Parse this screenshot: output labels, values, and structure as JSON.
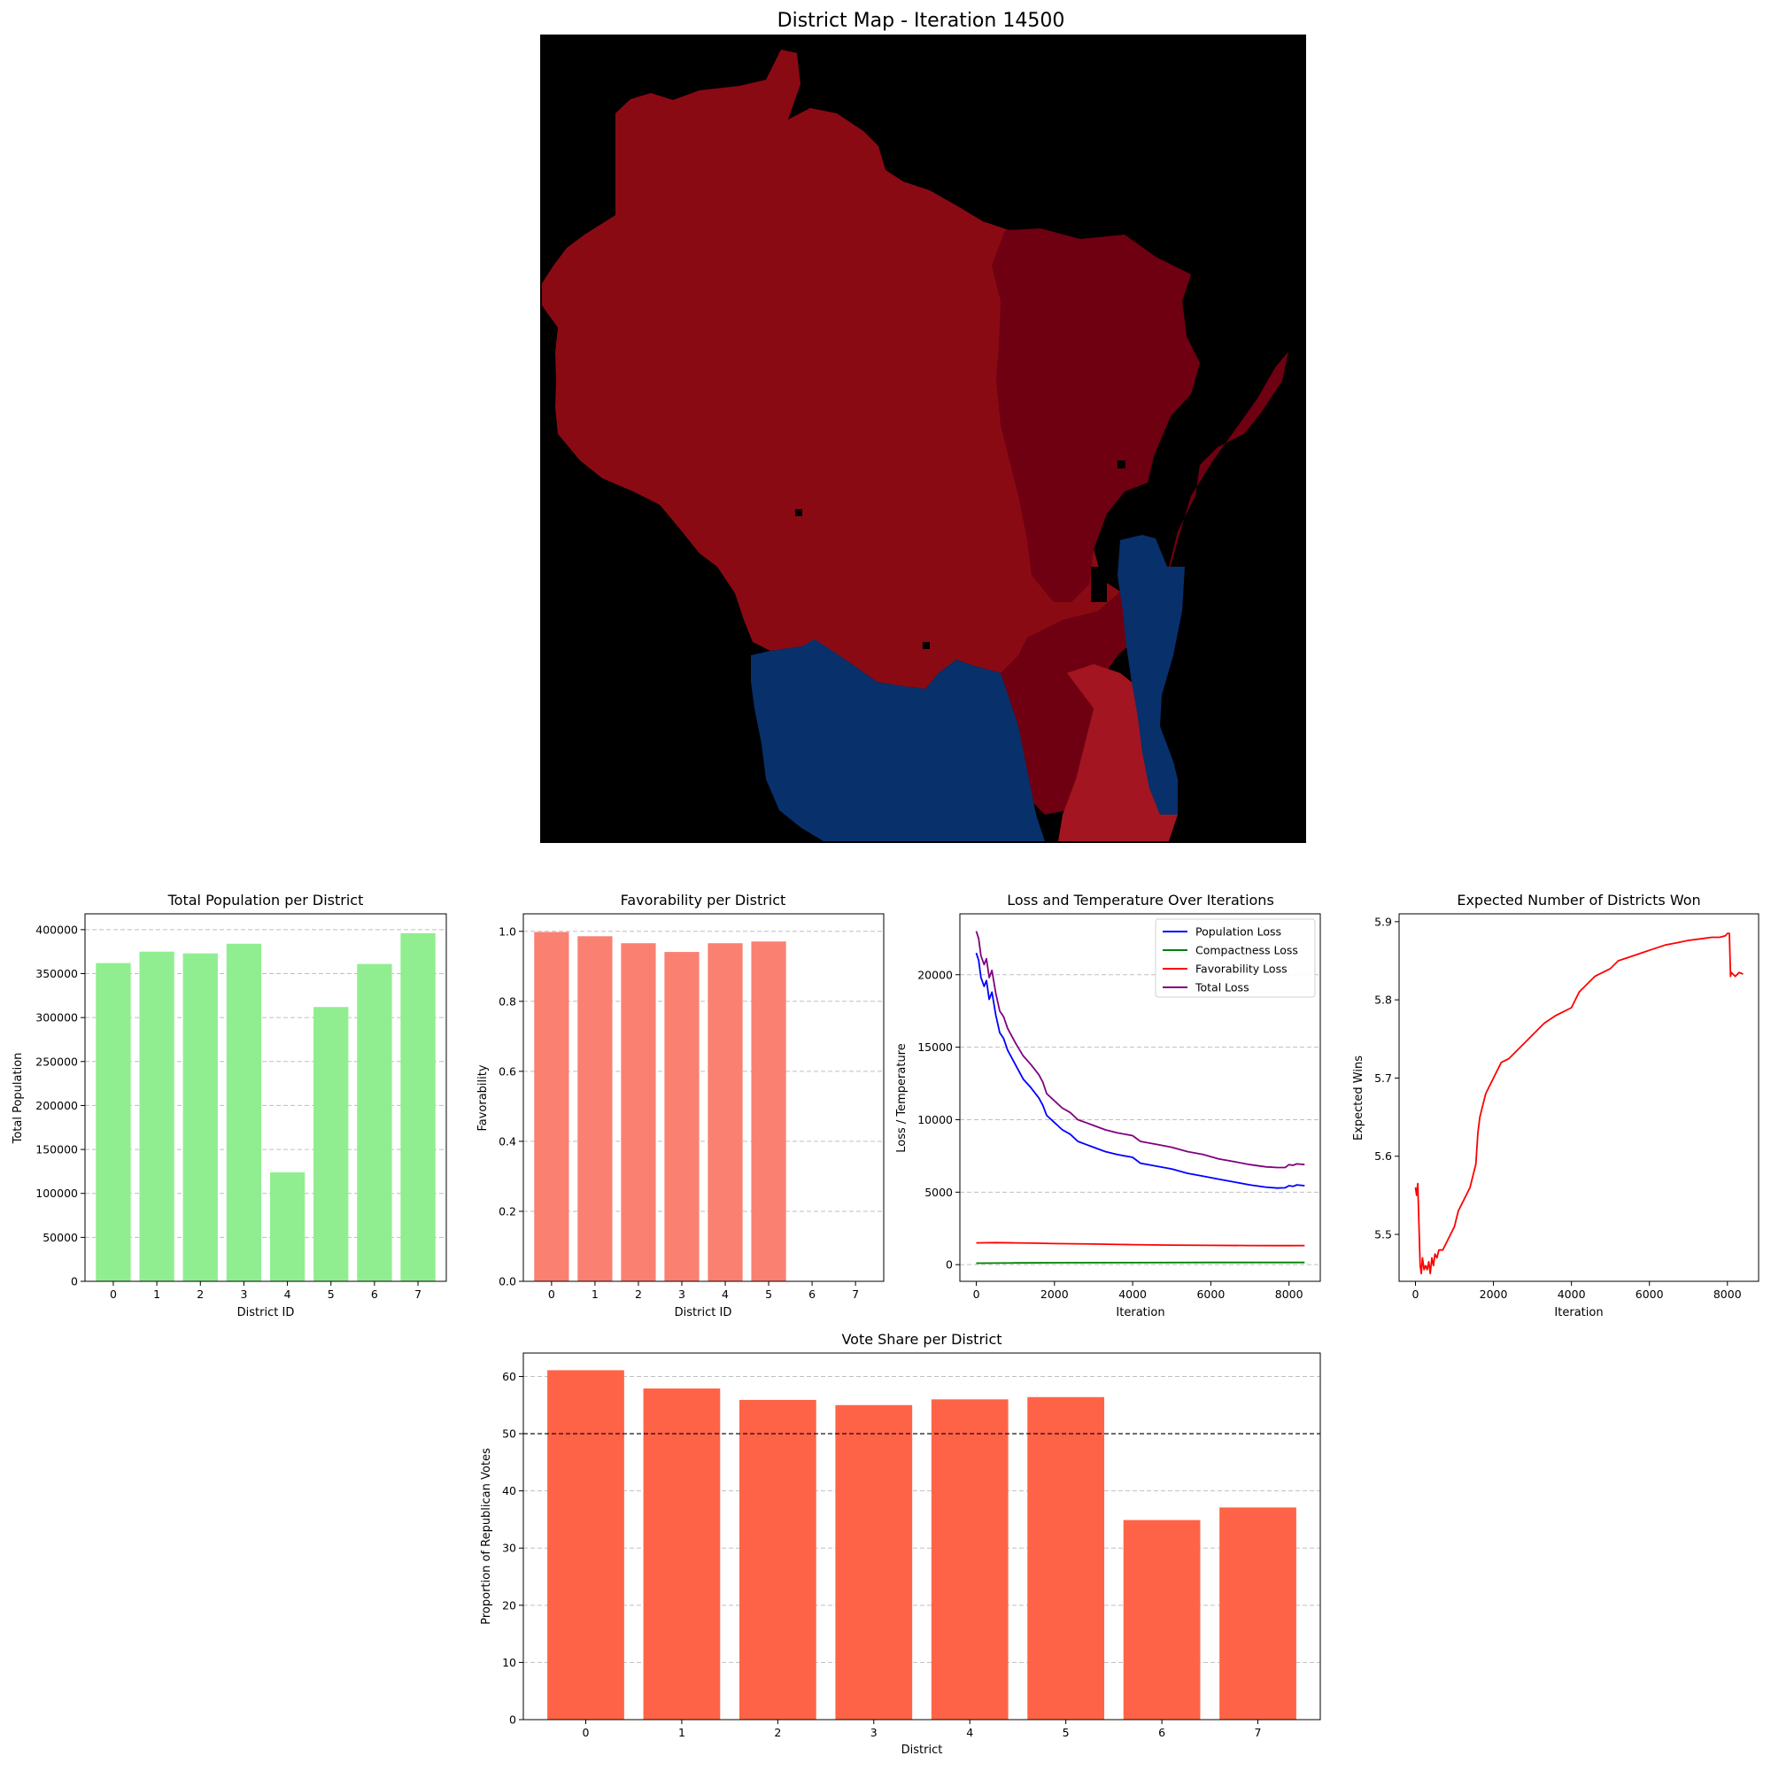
{
  "chart_data": [
    {
      "type": "heatmap",
      "title": "District Map - Iteration 14500",
      "colors": {
        "background": "#000000",
        "dark_red": "#6e0011",
        "red": "#8a0a14",
        "light_red": "#a31520",
        "blue": "#08306b"
      }
    },
    {
      "type": "bar",
      "title": "Total Population per District",
      "xlabel": "District ID",
      "ylabel": "Total Population",
      "categories": [
        "0",
        "1",
        "2",
        "3",
        "4",
        "5",
        "6",
        "7"
      ],
      "values": [
        362000,
        375000,
        373000,
        384000,
        124000,
        312000,
        361000,
        396000
      ],
      "ylim": [
        0,
        418000
      ],
      "yticks": [
        0,
        50000,
        100000,
        150000,
        200000,
        250000,
        300000,
        350000,
        400000
      ],
      "color": "#90ee90",
      "grid": "y-dashed"
    },
    {
      "type": "bar",
      "title": "Favorability per District",
      "xlabel": "District ID",
      "ylabel": "Favorability",
      "categories": [
        "0",
        "1",
        "2",
        "3",
        "4",
        "5",
        "6",
        "7"
      ],
      "values": [
        0.998,
        0.986,
        0.966,
        0.941,
        0.966,
        0.971,
        0,
        0
      ],
      "ylim": [
        0,
        1.05
      ],
      "yticks": [
        0.0,
        0.2,
        0.4,
        0.6,
        0.8,
        1.0
      ],
      "color": "#fa8072",
      "grid": "y-dashed"
    },
    {
      "type": "line",
      "title": "Loss and Temperature Over Iterations",
      "xlabel": "Iteration",
      "ylabel": "Loss / Temperature",
      "xlim": [
        -420,
        8800
      ],
      "ylim": [
        -1150,
        24200
      ],
      "xticks": [
        0,
        2000,
        4000,
        6000,
        8000
      ],
      "yticks": [
        0,
        5000,
        10000,
        15000,
        20000
      ],
      "legend": "top-right",
      "grid": "y-dashed",
      "series": [
        {
          "name": "Population Loss",
          "color": "#0000ff",
          "x": [
            0,
            60,
            120,
            200,
            260,
            330,
            400,
            500,
            600,
            700,
            800,
            1000,
            1200,
            1400,
            1600,
            1700,
            1800,
            2000,
            2200,
            2400,
            2600,
            2800,
            3000,
            3300,
            3600,
            4000,
            4200,
            4600,
            5000,
            5400,
            5800,
            6200,
            6600,
            7000,
            7400,
            7700,
            7900,
            8000,
            8100,
            8200,
            8400
          ],
          "y": [
            21500,
            21000,
            19800,
            19200,
            19600,
            18300,
            18800,
            17200,
            16000,
            15600,
            14800,
            13800,
            12800,
            12200,
            11500,
            11000,
            10300,
            9800,
            9300,
            9000,
            8500,
            8300,
            8100,
            7800,
            7600,
            7400,
            7000,
            6800,
            6600,
            6300,
            6100,
            5900,
            5700,
            5500,
            5350,
            5280,
            5300,
            5450,
            5400,
            5500,
            5450
          ]
        },
        {
          "name": "Compactness Loss",
          "color": "#008000",
          "x": [
            0,
            1000,
            2000,
            4000,
            6000,
            8000,
            8400
          ],
          "y": [
            100,
            120,
            130,
            140,
            150,
            150,
            150
          ]
        },
        {
          "name": "Favorability Loss",
          "color": "#ff0000",
          "x": [
            0,
            500,
            1000,
            1500,
            2000,
            3000,
            4000,
            5000,
            6000,
            7000,
            8000,
            8400
          ],
          "y": [
            1500,
            1520,
            1500,
            1480,
            1450,
            1420,
            1380,
            1350,
            1330,
            1320,
            1310,
            1320
          ]
        },
        {
          "name": "Total Loss",
          "color": "#800080",
          "x": [
            0,
            60,
            120,
            200,
            260,
            330,
            400,
            500,
            600,
            700,
            800,
            1000,
            1200,
            1400,
            1600,
            1700,
            1800,
            2000,
            2200,
            2400,
            2600,
            2800,
            3000,
            3300,
            3600,
            4000,
            4200,
            4600,
            5000,
            5400,
            5800,
            6200,
            6600,
            7000,
            7400,
            7700,
            7900,
            8000,
            8100,
            8200,
            8400
          ],
          "y": [
            23000,
            22500,
            21300,
            20700,
            21100,
            19800,
            20300,
            18700,
            17500,
            17100,
            16300,
            15300,
            14400,
            13800,
            13100,
            12600,
            11800,
            11300,
            10800,
            10500,
            10000,
            9800,
            9600,
            9300,
            9100,
            8900,
            8500,
            8300,
            8100,
            7800,
            7600,
            7300,
            7100,
            6900,
            6750,
            6700,
            6700,
            6900,
            6850,
            6950,
            6900
          ]
        }
      ]
    },
    {
      "type": "line",
      "title": "Expected Number of Districts Won",
      "xlabel": "Iteration",
      "ylabel": "Expected Wins",
      "xlim": [
        -420,
        8800
      ],
      "ylim": [
        5.44,
        5.91
      ],
      "xticks": [
        0,
        2000,
        4000,
        6000,
        8000
      ],
      "yticks": [
        5.5,
        5.6,
        5.7,
        5.8,
        5.9
      ],
      "series": [
        {
          "name": "",
          "color": "#ff0000",
          "x": [
            0,
            30,
            60,
            90,
            120,
            150,
            180,
            220,
            260,
            300,
            340,
            380,
            420,
            460,
            500,
            550,
            600,
            700,
            800,
            900,
            1000,
            1100,
            1200,
            1300,
            1400,
            1500,
            1550,
            1600,
            1650,
            1700,
            1800,
            1900,
            2000,
            2200,
            2400,
            2600,
            2800,
            3000,
            3300,
            3600,
            3800,
            4000,
            4100,
            4200,
            4400,
            4600,
            4800,
            5000,
            5200,
            5500,
            5800,
            6100,
            6400,
            6700,
            7000,
            7300,
            7600,
            7800,
            7950,
            8000,
            8050,
            8080,
            8100,
            8200,
            8300,
            8400
          ],
          "y": [
            5.56,
            5.55,
            5.565,
            5.51,
            5.46,
            5.45,
            5.47,
            5.455,
            5.46,
            5.455,
            5.465,
            5.45,
            5.47,
            5.46,
            5.475,
            5.47,
            5.48,
            5.48,
            5.49,
            5.5,
            5.51,
            5.53,
            5.54,
            5.55,
            5.56,
            5.58,
            5.59,
            5.63,
            5.65,
            5.66,
            5.68,
            5.69,
            5.7,
            5.72,
            5.725,
            5.735,
            5.745,
            5.755,
            5.77,
            5.78,
            5.785,
            5.79,
            5.8,
            5.81,
            5.82,
            5.83,
            5.835,
            5.84,
            5.85,
            5.855,
            5.86,
            5.865,
            5.87,
            5.873,
            5.876,
            5.878,
            5.88,
            5.88,
            5.882,
            5.885,
            5.885,
            5.83,
            5.835,
            5.83,
            5.835,
            5.833
          ]
        }
      ]
    },
    {
      "type": "bar",
      "title": "Vote Share per District",
      "xlabel": "District",
      "ylabel": "Proportion of Republican Votes",
      "categories": [
        "0",
        "1",
        "2",
        "3",
        "4",
        "5",
        "6",
        "7"
      ],
      "values": [
        61.1,
        57.9,
        55.9,
        55.0,
        56.0,
        56.4,
        34.9,
        37.1
      ],
      "ylim": [
        0,
        64.1
      ],
      "yticks": [
        0,
        10,
        20,
        30,
        40,
        50,
        60
      ],
      "reference_line": 50,
      "color": "#ff6347",
      "grid": "y-dashed"
    }
  ]
}
